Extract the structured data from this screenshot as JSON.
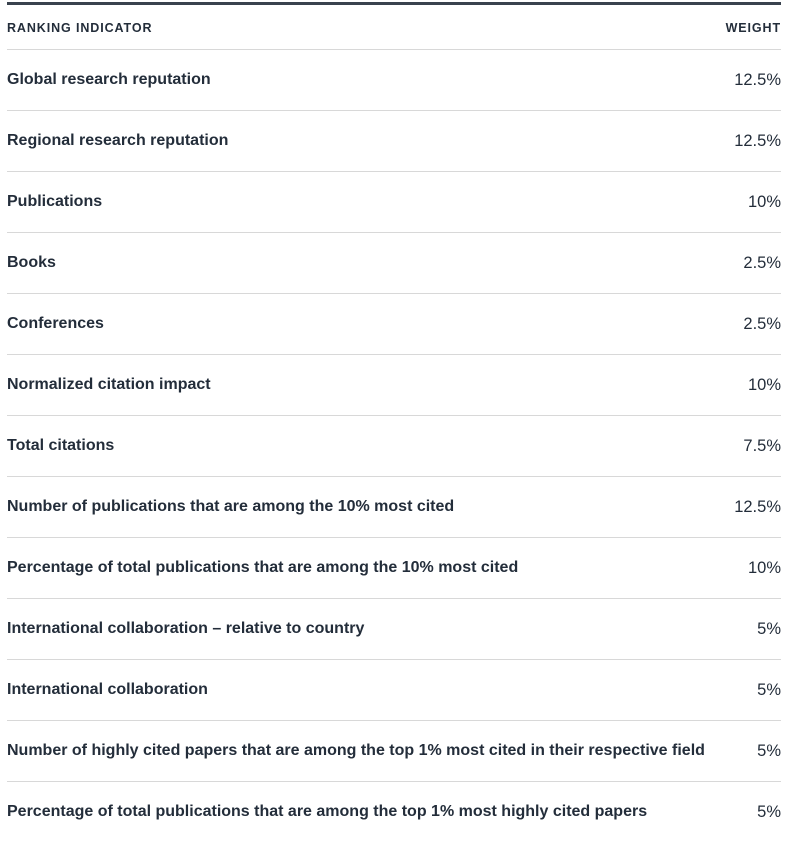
{
  "table": {
    "columns": {
      "indicator": "RANKING INDICATOR",
      "weight": "WEIGHT"
    },
    "rows": [
      {
        "indicator": "Global research reputation",
        "weight": "12.5%"
      },
      {
        "indicator": "Regional research reputation",
        "weight": "12.5%"
      },
      {
        "indicator": "Publications",
        "weight": "10%"
      },
      {
        "indicator": "Books",
        "weight": "2.5%"
      },
      {
        "indicator": "Conferences",
        "weight": "2.5%"
      },
      {
        "indicator": "Normalized citation impact",
        "weight": "10%"
      },
      {
        "indicator": "Total citations",
        "weight": "7.5%"
      },
      {
        "indicator": "Number of publications that are among the 10% most cited",
        "weight": "12.5%"
      },
      {
        "indicator": "Percentage of total publications that are among the 10% most cited",
        "weight": "10%"
      },
      {
        "indicator": "International collaboration – relative to country",
        "weight": "5%"
      },
      {
        "indicator": "International collaboration",
        "weight": "5%"
      },
      {
        "indicator": "Number of highly cited papers that are among the top 1% most cited in their respective field",
        "weight": "5%"
      },
      {
        "indicator": "Percentage of total publications that are among the top 1% most highly cited papers",
        "weight": "5%"
      }
    ]
  },
  "colors": {
    "text": "#232d3a",
    "top_bar": "#39424e",
    "divider": "#d8d8d8",
    "background": "#ffffff"
  }
}
